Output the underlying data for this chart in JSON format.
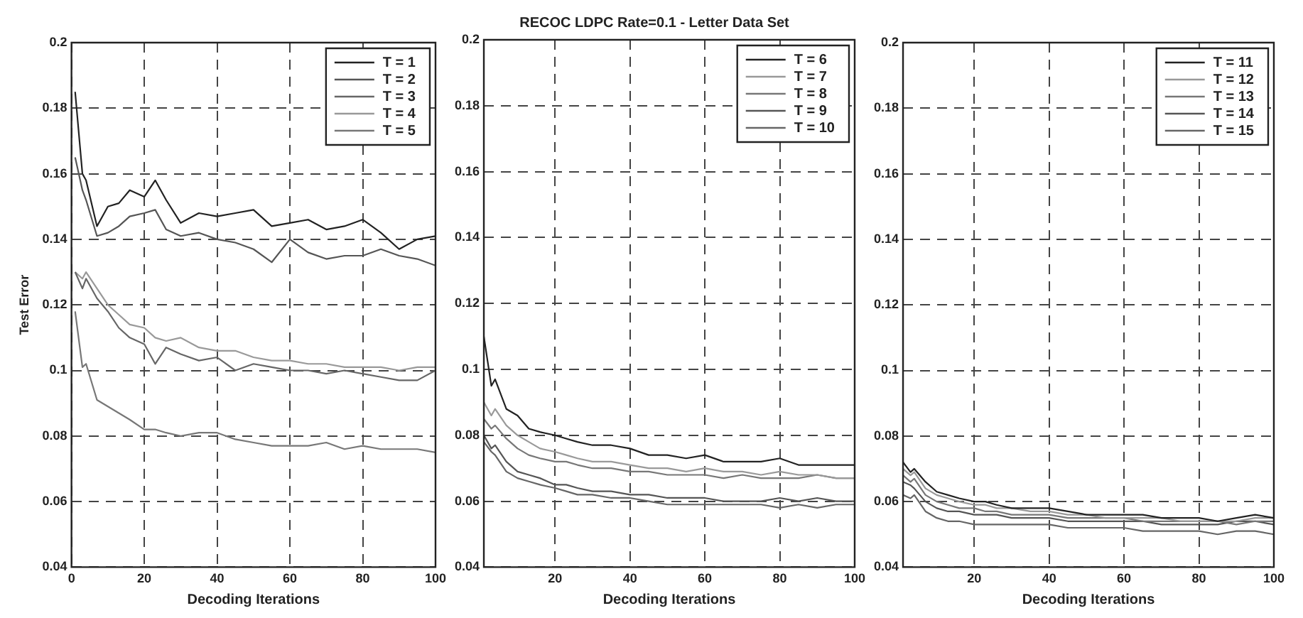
{
  "chart_data": [
    {
      "type": "line",
      "ylabel": "Test Error",
      "xlabel": "Decoding Iterations",
      "x": [
        1,
        3,
        4,
        7,
        10,
        13,
        16,
        20,
        23,
        26,
        30,
        35,
        40,
        45,
        50,
        55,
        60,
        65,
        70,
        75,
        80,
        85,
        90,
        95,
        100
      ],
      "xlim": [
        0,
        100
      ],
      "xticks": [
        0,
        20,
        40,
        60,
        80,
        100
      ],
      "ylim": [
        0.04,
        0.2
      ],
      "yticks": [
        0.04,
        0.06,
        0.08,
        0.1,
        0.12,
        0.14,
        0.16,
        0.18,
        0.2
      ],
      "grid": true,
      "legend": "top right",
      "series": [
        {
          "name": "T = 1",
          "color": "#222222",
          "values": [
            0.185,
            0.16,
            0.158,
            0.144,
            0.15,
            0.151,
            0.155,
            0.153,
            0.158,
            0.152,
            0.145,
            0.148,
            0.147,
            0.148,
            0.149,
            0.144,
            0.145,
            0.146,
            0.143,
            0.144,
            0.146,
            0.142,
            0.137,
            0.14,
            0.141
          ]
        },
        {
          "name": "T = 2",
          "color": "#555555",
          "values": [
            0.165,
            0.155,
            0.152,
            0.141,
            0.142,
            0.144,
            0.147,
            0.148,
            0.149,
            0.143,
            0.141,
            0.142,
            0.14,
            0.139,
            0.137,
            0.133,
            0.14,
            0.136,
            0.134,
            0.135,
            0.135,
            0.137,
            0.135,
            0.134,
            0.132
          ]
        },
        {
          "name": "T = 3",
          "color": "#666666",
          "values": [
            0.13,
            0.125,
            0.128,
            0.122,
            0.118,
            0.113,
            0.11,
            0.108,
            0.102,
            0.107,
            0.105,
            0.103,
            0.104,
            0.1,
            0.102,
            0.101,
            0.1,
            0.1,
            0.099,
            0.1,
            0.099,
            0.098,
            0.097,
            0.097,
            0.1
          ]
        },
        {
          "name": "T = 4",
          "color": "#999999",
          "values": [
            0.13,
            0.128,
            0.13,
            0.125,
            0.12,
            0.117,
            0.114,
            0.113,
            0.11,
            0.109,
            0.11,
            0.107,
            0.106,
            0.106,
            0.104,
            0.103,
            0.103,
            0.102,
            0.102,
            0.101,
            0.101,
            0.101,
            0.1,
            0.101,
            0.101
          ]
        },
        {
          "name": "T = 5",
          "color": "#777777",
          "values": [
            0.118,
            0.101,
            0.102,
            0.091,
            0.089,
            0.087,
            0.085,
            0.082,
            0.082,
            0.081,
            0.08,
            0.081,
            0.081,
            0.079,
            0.078,
            0.077,
            0.077,
            0.077,
            0.078,
            0.076,
            0.077,
            0.076,
            0.076,
            0.076,
            0.075
          ]
        }
      ]
    },
    {
      "type": "line",
      "title": "RECOC LDPC Rate=0.1 - Letter Data Set",
      "xlabel": "Decoding Iterations",
      "x": [
        1,
        3,
        4,
        7,
        10,
        13,
        16,
        20,
        23,
        26,
        30,
        35,
        40,
        45,
        50,
        55,
        60,
        65,
        70,
        75,
        80,
        85,
        90,
        95,
        100
      ],
      "xlim": [
        1,
        100
      ],
      "xticks": [
        20,
        40,
        60,
        80,
        100
      ],
      "ylim": [
        0.04,
        0.2
      ],
      "yticks": [
        0.04,
        0.06,
        0.08,
        0.1,
        0.12,
        0.14,
        0.16,
        0.18,
        0.2
      ],
      "grid": true,
      "legend": "top right",
      "series": [
        {
          "name": "T = 6",
          "color": "#222222",
          "values": [
            0.11,
            0.095,
            0.097,
            0.088,
            0.086,
            0.082,
            0.081,
            0.08,
            0.079,
            0.078,
            0.077,
            0.077,
            0.076,
            0.074,
            0.074,
            0.073,
            0.074,
            0.072,
            0.072,
            0.072,
            0.073,
            0.071,
            0.071,
            0.071,
            0.071
          ]
        },
        {
          "name": "T = 7",
          "color": "#999999",
          "values": [
            0.09,
            0.086,
            0.088,
            0.083,
            0.08,
            0.078,
            0.076,
            0.075,
            0.074,
            0.073,
            0.072,
            0.072,
            0.071,
            0.07,
            0.07,
            0.069,
            0.07,
            0.069,
            0.069,
            0.068,
            0.069,
            0.068,
            0.068,
            0.067,
            0.067
          ]
        },
        {
          "name": "T = 8",
          "color": "#777777",
          "values": [
            0.085,
            0.082,
            0.083,
            0.079,
            0.076,
            0.074,
            0.073,
            0.072,
            0.072,
            0.071,
            0.07,
            0.07,
            0.069,
            0.069,
            0.068,
            0.068,
            0.068,
            0.067,
            0.068,
            0.067,
            0.067,
            0.067,
            0.068,
            0.067,
            0.067
          ]
        },
        {
          "name": "T = 9",
          "color": "#555555",
          "values": [
            0.08,
            0.076,
            0.077,
            0.072,
            0.069,
            0.068,
            0.067,
            0.065,
            0.065,
            0.064,
            0.063,
            0.063,
            0.062,
            0.062,
            0.061,
            0.061,
            0.061,
            0.06,
            0.06,
            0.06,
            0.061,
            0.06,
            0.061,
            0.06,
            0.06
          ]
        },
        {
          "name": "T = 10",
          "color": "#666666",
          "values": [
            0.078,
            0.075,
            0.074,
            0.069,
            0.067,
            0.066,
            0.065,
            0.064,
            0.063,
            0.062,
            0.062,
            0.061,
            0.061,
            0.06,
            0.059,
            0.059,
            0.059,
            0.059,
            0.059,
            0.059,
            0.058,
            0.059,
            0.058,
            0.059,
            0.059
          ]
        }
      ]
    },
    {
      "type": "line",
      "xlabel": "Decoding Iterations",
      "x": [
        1,
        3,
        4,
        7,
        10,
        13,
        16,
        20,
        23,
        26,
        30,
        35,
        40,
        45,
        50,
        55,
        60,
        65,
        70,
        75,
        80,
        85,
        90,
        95,
        100
      ],
      "xlim": [
        1,
        100
      ],
      "xticks": [
        20,
        40,
        60,
        80,
        100
      ],
      "ylim": [
        0.04,
        0.2
      ],
      "yticks": [
        0.04,
        0.06,
        0.08,
        0.1,
        0.12,
        0.14,
        0.16,
        0.18,
        0.2
      ],
      "grid": true,
      "legend": "top right",
      "series": [
        {
          "name": "T = 11",
          "color": "#222222",
          "values": [
            0.072,
            0.069,
            0.07,
            0.066,
            0.063,
            0.062,
            0.061,
            0.06,
            0.06,
            0.059,
            0.058,
            0.058,
            0.058,
            0.057,
            0.056,
            0.056,
            0.056,
            0.056,
            0.055,
            0.055,
            0.055,
            0.054,
            0.055,
            0.056,
            0.055
          ]
        },
        {
          "name": "T = 12",
          "color": "#999999",
          "values": [
            0.07,
            0.068,
            0.069,
            0.064,
            0.062,
            0.061,
            0.06,
            0.059,
            0.059,
            0.058,
            0.058,
            0.057,
            0.057,
            0.056,
            0.056,
            0.055,
            0.055,
            0.055,
            0.055,
            0.054,
            0.054,
            0.054,
            0.054,
            0.055,
            0.055
          ]
        },
        {
          "name": "T = 13",
          "color": "#777777",
          "values": [
            0.068,
            0.066,
            0.067,
            0.062,
            0.06,
            0.059,
            0.058,
            0.058,
            0.057,
            0.057,
            0.056,
            0.056,
            0.056,
            0.055,
            0.055,
            0.055,
            0.055,
            0.054,
            0.054,
            0.054,
            0.054,
            0.054,
            0.053,
            0.054,
            0.054
          ]
        },
        {
          "name": "T = 14",
          "color": "#555555",
          "values": [
            0.066,
            0.065,
            0.064,
            0.06,
            0.058,
            0.057,
            0.057,
            0.056,
            0.056,
            0.056,
            0.055,
            0.055,
            0.055,
            0.054,
            0.054,
            0.054,
            0.054,
            0.054,
            0.053,
            0.053,
            0.053,
            0.053,
            0.054,
            0.054,
            0.053
          ]
        },
        {
          "name": "T = 15",
          "color": "#666666",
          "values": [
            0.062,
            0.061,
            0.062,
            0.057,
            0.055,
            0.054,
            0.054,
            0.053,
            0.053,
            0.053,
            0.053,
            0.053,
            0.053,
            0.052,
            0.052,
            0.052,
            0.052,
            0.051,
            0.051,
            0.051,
            0.051,
            0.05,
            0.051,
            0.051,
            0.05
          ]
        }
      ]
    }
  ]
}
